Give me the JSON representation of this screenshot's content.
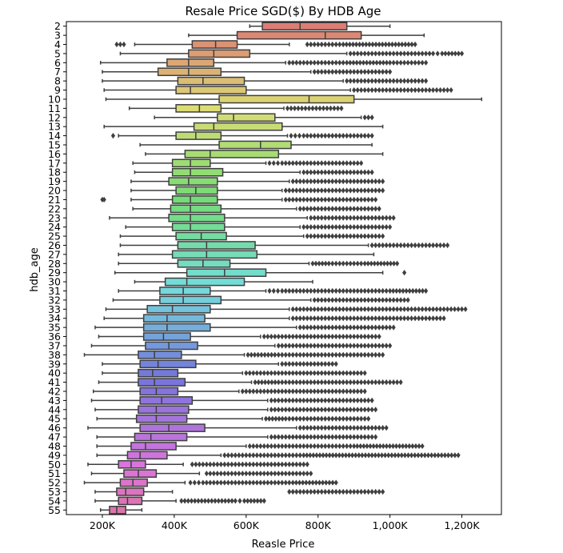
{
  "chart_data": {
    "type": "boxplot",
    "title": "Resale Price SGD($) By HDB Age",
    "xlabel": "Reasle Price",
    "ylabel": "hdb_age",
    "xlim": [
      100000,
      1310000
    ],
    "orientation": "horizontal",
    "x_ticks": [
      200000,
      400000,
      600000,
      800000,
      1000000,
      1200000
    ],
    "x_tick_labels": [
      "200K",
      "400K",
      "600K",
      "800K",
      "1,000K",
      "1,200K"
    ],
    "categories": [
      "2",
      "3",
      "4",
      "5",
      "6",
      "7",
      "8",
      "9",
      "10",
      "11",
      "12",
      "13",
      "14",
      "15",
      "16",
      "17",
      "18",
      "19",
      "20",
      "21",
      "22",
      "23",
      "24",
      "25",
      "26",
      "27",
      "28",
      "29",
      "30",
      "31",
      "32",
      "33",
      "34",
      "35",
      "36",
      "37",
      "38",
      "39",
      "40",
      "41",
      "42",
      "43",
      "44",
      "45",
      "46",
      "47",
      "48",
      "49",
      "50",
      "51",
      "52",
      "53",
      "54",
      "55"
    ],
    "boxes": [
      {
        "age": "2",
        "whislo": 610000,
        "q1": 645000,
        "med": 750000,
        "q3": 880000,
        "whishi": 1000000,
        "fliers": []
      },
      {
        "age": "3",
        "whislo": 440000,
        "q1": 575000,
        "med": 820000,
        "q3": 920000,
        "whishi": 1095000,
        "fliers": []
      },
      {
        "age": "4",
        "whislo": 290000,
        "q1": 450000,
        "med": 515000,
        "q3": 575000,
        "whishi": 720000,
        "fliers": [
          240000,
          250000,
          260000,
          770000,
          810000,
          870000,
          1070000
        ]
      },
      {
        "age": "5",
        "whislo": 250000,
        "q1": 440000,
        "med": 510000,
        "q3": 610000,
        "whishi": 880000,
        "fliers": [
          890000,
          920000,
          950000,
          980000,
          1010000,
          1040000,
          1080000,
          1120000,
          1145000,
          1200000
        ]
      },
      {
        "age": "6",
        "whislo": 195000,
        "q1": 380000,
        "med": 440000,
        "q3": 510000,
        "whishi": 710000,
        "fliers": [
          720000,
          750000,
          780000,
          810000,
          840000,
          880000,
          1000000,
          1030000,
          1060000,
          1100000
        ]
      },
      {
        "age": "7",
        "whislo": 200000,
        "q1": 355000,
        "med": 440000,
        "q3": 530000,
        "whishi": 780000,
        "fliers": [
          790000,
          820000,
          860000,
          920000,
          960000,
          1000000
        ]
      },
      {
        "age": "8",
        "whislo": 200000,
        "q1": 410000,
        "med": 480000,
        "q3": 595000,
        "whishi": 870000,
        "fliers": [
          880000,
          920000,
          960000,
          1010000,
          1040000,
          1100000
        ]
      },
      {
        "age": "9",
        "whislo": 205000,
        "q1": 405000,
        "med": 445000,
        "q3": 600000,
        "whishi": 890000,
        "fliers": [
          900000,
          940000,
          980000,
          1020000,
          1060000,
          1120000,
          1150000,
          1170000
        ]
      },
      {
        "age": "10",
        "whislo": 210000,
        "q1": 525000,
        "med": 775000,
        "q3": 900000,
        "whishi": 1255000,
        "fliers": []
      },
      {
        "age": "11",
        "whislo": 275000,
        "q1": 405000,
        "med": 470000,
        "q3": 530000,
        "whishi": 705000,
        "fliers": [
          715000,
          745000,
          775000,
          805000,
          835000,
          865000
        ]
      },
      {
        "age": "12",
        "whislo": 345000,
        "q1": 520000,
        "med": 565000,
        "q3": 680000,
        "whishi": 920000,
        "fliers": [
          930000,
          950000
        ]
      },
      {
        "age": "13",
        "whislo": 205000,
        "q1": 455000,
        "med": 510000,
        "q3": 700000,
        "whishi": 980000,
        "fliers": []
      },
      {
        "age": "14",
        "whislo": 245000,
        "q1": 405000,
        "med": 460000,
        "q3": 530000,
        "whishi": 715000,
        "fliers": [
          230000,
          725000,
          760000,
          800000,
          840000,
          880000,
          920000,
          950000
        ]
      },
      {
        "age": "15",
        "whislo": 305000,
        "q1": 525000,
        "med": 640000,
        "q3": 725000,
        "whishi": 950000,
        "fliers": []
      },
      {
        "age": "16",
        "whislo": 320000,
        "q1": 430000,
        "med": 500000,
        "q3": 690000,
        "whishi": 980000,
        "fliers": []
      },
      {
        "age": "17",
        "whislo": 285000,
        "q1": 395000,
        "med": 445000,
        "q3": 500000,
        "whishi": 655000,
        "fliers": [
          665000,
          700000,
          740000,
          780000,
          830000,
          880000,
          920000
        ]
      },
      {
        "age": "18",
        "whislo": 290000,
        "q1": 395000,
        "med": 445000,
        "q3": 535000,
        "whishi": 750000,
        "fliers": [
          760000,
          800000,
          840000,
          880000,
          920000,
          950000
        ]
      },
      {
        "age": "19",
        "whislo": 280000,
        "q1": 385000,
        "med": 440000,
        "q3": 520000,
        "whishi": 720000,
        "fliers": [
          730000,
          780000,
          830000,
          880000,
          940000,
          980000
        ]
      },
      {
        "age": "20",
        "whislo": 280000,
        "q1": 405000,
        "med": 460000,
        "q3": 520000,
        "whishi": 700000,
        "fliers": [
          710000,
          760000,
          810000,
          860000,
          920000,
          980000
        ]
      },
      {
        "age": "21",
        "whislo": 280000,
        "q1": 395000,
        "med": 445000,
        "q3": 520000,
        "whishi": 700000,
        "fliers": [
          200000,
          205000,
          710000,
          760000,
          820000,
          880000,
          940000,
          960000
        ]
      },
      {
        "age": "22",
        "whislo": 285000,
        "q1": 390000,
        "med": 445000,
        "q3": 530000,
        "whishi": 740000,
        "fliers": [
          750000,
          800000,
          850000,
          900000,
          940000,
          970000
        ]
      },
      {
        "age": "23",
        "whislo": 220000,
        "q1": 385000,
        "med": 445000,
        "q3": 540000,
        "whishi": 770000,
        "fliers": [
          780000,
          830000,
          880000,
          930000,
          980000,
          1010000
        ]
      },
      {
        "age": "24",
        "whislo": 265000,
        "q1": 395000,
        "med": 445000,
        "q3": 540000,
        "whishi": 750000,
        "fliers": [
          760000,
          810000,
          860000,
          910000,
          960000,
          1000000
        ]
      },
      {
        "age": "25",
        "whislo": 250000,
        "q1": 405000,
        "med": 475000,
        "q3": 545000,
        "whishi": 760000,
        "fliers": [
          770000,
          820000,
          870000,
          920000,
          960000,
          980000
        ]
      },
      {
        "age": "26",
        "whislo": 250000,
        "q1": 410000,
        "med": 490000,
        "q3": 625000,
        "whishi": 940000,
        "fliers": [
          950000,
          1000000,
          1050000,
          1080000,
          1100000,
          1140000,
          1160000
        ]
      },
      {
        "age": "27",
        "whislo": 245000,
        "q1": 395000,
        "med": 490000,
        "q3": 630000,
        "whishi": 955000,
        "fliers": []
      },
      {
        "age": "28",
        "whislo": 245000,
        "q1": 410000,
        "med": 480000,
        "q3": 555000,
        "whishi": 775000,
        "fliers": [
          785000,
          830000,
          880000,
          930000,
          975000,
          1020000
        ]
      },
      {
        "age": "29",
        "whislo": 235000,
        "q1": 435000,
        "med": 540000,
        "q3": 655000,
        "whishi": 980000,
        "fliers": [
          1040000
        ]
      },
      {
        "age": "30",
        "whislo": 290000,
        "q1": 375000,
        "med": 435000,
        "q3": 595000,
        "whishi": 785000,
        "fliers": []
      },
      {
        "age": "31",
        "whislo": 245000,
        "q1": 360000,
        "med": 425000,
        "q3": 500000,
        "whishi": 655000,
        "fliers": [
          665000,
          700000,
          740000,
          790000,
          850000,
          920000,
          1000000,
          1100000
        ]
      },
      {
        "age": "32",
        "whislo": 230000,
        "q1": 360000,
        "med": 425000,
        "q3": 530000,
        "whishi": 780000,
        "fliers": [
          790000,
          850000,
          910000,
          970000,
          1030000,
          1050000
        ]
      },
      {
        "age": "33",
        "whislo": 210000,
        "q1": 325000,
        "med": 395000,
        "q3": 500000,
        "whishi": 720000,
        "fliers": [
          730000,
          800000,
          870000,
          940000,
          1000000,
          1060000,
          1130000,
          1210000
        ]
      },
      {
        "age": "34",
        "whislo": 205000,
        "q1": 315000,
        "med": 380000,
        "q3": 485000,
        "whishi": 720000,
        "fliers": [
          730000,
          800000,
          870000,
          950000,
          1020000,
          1080000,
          1130000,
          1150000
        ]
      },
      {
        "age": "35",
        "whislo": 180000,
        "q1": 315000,
        "med": 380000,
        "q3": 500000,
        "whishi": 740000,
        "fliers": [
          750000,
          810000,
          870000,
          930000,
          980000,
          1010000
        ]
      },
      {
        "age": "36",
        "whislo": 190000,
        "q1": 315000,
        "med": 370000,
        "q3": 445000,
        "whishi": 640000,
        "fliers": [
          650000,
          720000,
          790000,
          860000,
          920000,
          970000
        ]
      },
      {
        "age": "37",
        "whislo": 170000,
        "q1": 320000,
        "med": 385000,
        "q3": 465000,
        "whishi": 680000,
        "fliers": [
          690000,
          760000,
          830000,
          900000,
          950000,
          1000000
        ]
      },
      {
        "age": "38",
        "whislo": 150000,
        "q1": 300000,
        "med": 345000,
        "q3": 420000,
        "whishi": 595000,
        "fliers": [
          605000,
          680000,
          760000,
          840000,
          920000,
          980000
        ]
      },
      {
        "age": "39",
        "whislo": 200000,
        "q1": 305000,
        "med": 355000,
        "q3": 460000,
        "whishi": 690000,
        "fliers": [
          700000,
          750000,
          800000,
          850000
        ]
      },
      {
        "age": "40",
        "whislo": 200000,
        "q1": 300000,
        "med": 340000,
        "q3": 410000,
        "whishi": 590000,
        "fliers": [
          600000,
          660000,
          720000,
          790000,
          860000,
          930000
        ]
      },
      {
        "age": "41",
        "whislo": 190000,
        "q1": 300000,
        "med": 345000,
        "q3": 430000,
        "whishi": 615000,
        "fliers": [
          625000,
          690000,
          760000,
          830000,
          900000,
          960000,
          1030000
        ]
      },
      {
        "age": "42",
        "whislo": 175000,
        "q1": 305000,
        "med": 350000,
        "q3": 410000,
        "whishi": 580000,
        "fliers": [
          590000,
          650000,
          720000,
          790000,
          860000,
          930000
        ]
      },
      {
        "age": "43",
        "whislo": 170000,
        "q1": 305000,
        "med": 365000,
        "q3": 450000,
        "whishi": 660000,
        "fliers": [
          670000,
          730000,
          790000,
          850000,
          900000,
          950000
        ]
      },
      {
        "age": "44",
        "whislo": 180000,
        "q1": 300000,
        "med": 350000,
        "q3": 440000,
        "whishi": 660000,
        "fliers": [
          670000,
          730000,
          790000,
          850000,
          910000,
          960000
        ]
      },
      {
        "age": "45",
        "whislo": 185000,
        "q1": 295000,
        "med": 350000,
        "q3": 435000,
        "whishi": 645000,
        "fliers": [
          655000,
          710000,
          770000,
          830000,
          890000,
          940000
        ]
      },
      {
        "age": "46",
        "whislo": 160000,
        "q1": 305000,
        "med": 385000,
        "q3": 485000,
        "whishi": 740000,
        "fliers": [
          750000,
          810000,
          870000,
          920000,
          990000
        ]
      },
      {
        "age": "47",
        "whislo": 185000,
        "q1": 290000,
        "med": 335000,
        "q3": 435000,
        "whishi": 660000,
        "fliers": [
          670000,
          720000,
          780000,
          840000,
          900000,
          960000
        ]
      },
      {
        "age": "48",
        "whislo": 185000,
        "q1": 280000,
        "med": 320000,
        "q3": 405000,
        "whishi": 600000,
        "fliers": [
          610000,
          650000,
          700000,
          760000,
          830000,
          900000,
          1090000
        ]
      },
      {
        "age": "49",
        "whislo": 185000,
        "q1": 270000,
        "med": 305000,
        "q3": 380000,
        "whishi": 530000,
        "fliers": [
          540000,
          600000,
          680000,
          760000,
          850000,
          950000,
          1060000,
          1190000
        ]
      },
      {
        "age": "50",
        "whislo": 160000,
        "q1": 245000,
        "med": 280000,
        "q3": 320000,
        "whishi": 425000,
        "fliers": [
          450000,
          490000,
          530000,
          590000,
          640000,
          690000,
          750000,
          770000
        ]
      },
      {
        "age": "51",
        "whislo": 170000,
        "q1": 260000,
        "med": 300000,
        "q3": 350000,
        "whishi": 470000,
        "fliers": [
          490000,
          530000,
          570000,
          620000,
          680000,
          740000,
          780000
        ]
      },
      {
        "age": "52",
        "whislo": 150000,
        "q1": 250000,
        "med": 285000,
        "q3": 325000,
        "whishi": 430000,
        "fliers": [
          445000,
          480000,
          520000,
          560000,
          610000,
          660000,
          730000,
          850000
        ]
      },
      {
        "age": "53",
        "whislo": 180000,
        "q1": 240000,
        "med": 265000,
        "q3": 315000,
        "whishi": 395000,
        "fliers": [
          720000,
          760000,
          800000,
          850000,
          900000,
          960000,
          980000
        ]
      },
      {
        "age": "54",
        "whislo": 180000,
        "q1": 245000,
        "med": 270000,
        "q3": 310000,
        "whishi": 405000,
        "fliers": [
          420000,
          570000,
          595000,
          650000
        ]
      },
      {
        "age": "55",
        "whislo": 195000,
        "q1": 220000,
        "med": 240000,
        "q3": 265000,
        "whishi": 310000,
        "fliers": []
      }
    ],
    "grid": false,
    "legend": "none",
    "palette": "husl"
  }
}
